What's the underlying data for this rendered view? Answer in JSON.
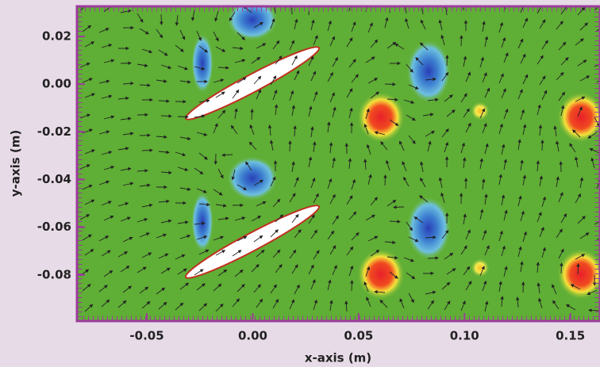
{
  "chart_data": {
    "type": "vector-field",
    "xlabel": "x-axis (m)",
    "ylabel": "y-axis (m)",
    "xlim": [
      -0.083,
      0.164
    ],
    "ylim": [
      -0.0993,
      0.0326
    ],
    "xticks": [
      -0.05,
      {
        "value": 0,
        "label": "0.00"
      },
      0.05,
      {
        "value": 0.1,
        "label": "0.10"
      },
      0.15
    ],
    "yticks": [
      0.02,
      {
        "value": 0,
        "label": "0.00"
      },
      -0.02,
      -0.04,
      -0.06,
      -0.08
    ],
    "color": "#9c3c9c"
  }
}
